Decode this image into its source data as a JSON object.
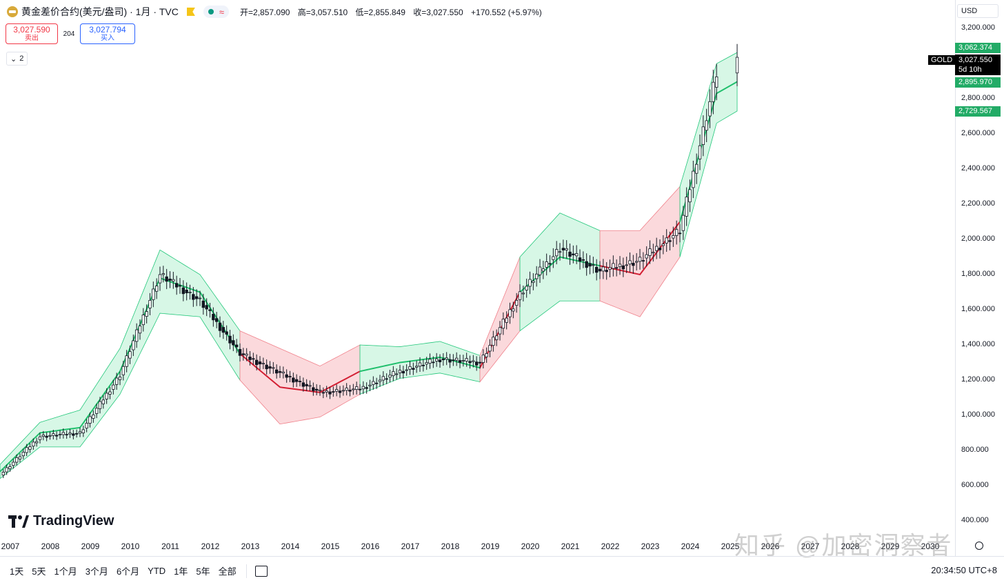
{
  "header": {
    "symbol_title": "黄金差价合约(美元/盎司) · 1月 · TVC",
    "approx_icon": "≈",
    "ohlc": [
      {
        "label": "开=",
        "value": "2,857.090"
      },
      {
        "label": "高=",
        "value": "3,057.510"
      },
      {
        "label": "低=",
        "value": "2,855.849"
      },
      {
        "label": "收=",
        "value": "3,027.550"
      }
    ],
    "change": "+170.552 (+5.97%)"
  },
  "trade": {
    "sell_price": "3,027.590",
    "sell_label": "卖出",
    "spread": "204",
    "buy_price": "3,027.794",
    "buy_label": "买入"
  },
  "indicator_toggle": {
    "count": "2"
  },
  "price_axis": {
    "currency": "USD",
    "ticks": [
      "3,200.000",
      "2,800.000",
      "2,600.000",
      "2,400.000",
      "2,200.000",
      "2,000.000",
      "1,800.000",
      "1,600.000",
      "1,400.000",
      "1,200.000",
      "1,000.000",
      "800.000",
      "600.000",
      "400.000"
    ],
    "labels": {
      "upper_band": "3,062.374",
      "last_price": "3,027.550",
      "countdown": "5d 10h",
      "middle_band": "2,895.970",
      "lower_band": "2,729.567",
      "symbol": "GOLD"
    }
  },
  "time_axis": {
    "years": [
      "2007",
      "2008",
      "2009",
      "2010",
      "2011",
      "2012",
      "2013",
      "2014",
      "2015",
      "2016",
      "2017",
      "2018",
      "2019",
      "2020",
      "2021",
      "2022",
      "2023",
      "2024",
      "2025",
      "2026",
      "2027",
      "2028",
      "2029",
      "2030"
    ]
  },
  "brand": {
    "name": "TradingView"
  },
  "watermark": "知乎 @加密洞察者",
  "bottom": {
    "ranges": [
      "1天",
      "5天",
      "1个月",
      "3个月",
      "6个月",
      "YTD",
      "1年",
      "5年",
      "全部"
    ],
    "clock": "20:34:50 UTC+8"
  },
  "colors": {
    "up_fill": "#d7f7e6",
    "up_edge": "#22c77a",
    "down_fill": "#fbd9dc",
    "down_edge": "#f0808a",
    "mid_up": "#1fbf6c",
    "mid_down": "#d31f33"
  },
  "chart_data": {
    "type": "candlestick",
    "interval": "1M",
    "x": [
      "2007",
      "2008",
      "2009",
      "2010",
      "2011",
      "2012",
      "2013",
      "2014",
      "2015",
      "2016",
      "2017",
      "2018",
      "2019",
      "2020",
      "2021",
      "2022",
      "2023",
      "2024",
      "2025"
    ],
    "close": [
      660,
      880,
      900,
      1230,
      1800,
      1650,
      1350,
      1240,
      1130,
      1150,
      1250,
      1320,
      1300,
      1690,
      1950,
      1820,
      1880,
      2050,
      3027.55
    ],
    "band_upper": [
      720,
      960,
      1030,
      1380,
      1940,
      1800,
      1480,
      1380,
      1280,
      1400,
      1390,
      1420,
      1340,
      1900,
      2150,
      2050,
      2050,
      2300,
      3062.374
    ],
    "band_middle": [
      680,
      900,
      930,
      1250,
      1780,
      1700,
      1350,
      1160,
      1130,
      1250,
      1300,
      1330,
      1270,
      1700,
      1900,
      1850,
      1800,
      2100,
      2895.97
    ],
    "band_lower": [
      640,
      820,
      820,
      1120,
      1580,
      1560,
      1200,
      950,
      990,
      1120,
      1210,
      1240,
      1190,
      1480,
      1650,
      1650,
      1560,
      1900,
      2729.567
    ],
    "band_trend": [
      "up",
      "up",
      "up",
      "up",
      "up",
      "up",
      "down",
      "down",
      "down",
      "up",
      "up",
      "up",
      "down",
      "up",
      "up",
      "down",
      "down",
      "up",
      "up"
    ],
    "ylim": [
      400,
      3200
    ]
  }
}
